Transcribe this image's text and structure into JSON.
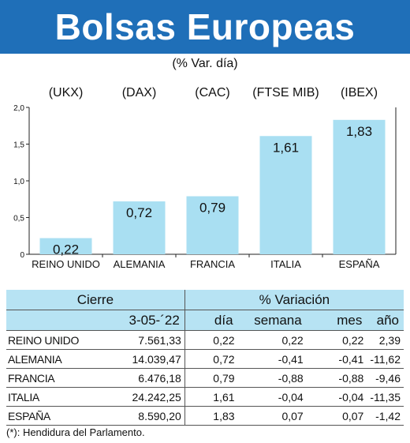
{
  "header": {
    "title": "Bolsas Europeas",
    "subtitle": "(% Var. día)"
  },
  "colors": {
    "title_bar": "#1f6fb8",
    "bar": "#a9dff2",
    "table_header": "#b7e3f3"
  },
  "chart_data": {
    "type": "bar",
    "index_labels": [
      "(UKX)",
      "(DAX)",
      "(CAC)",
      "(FTSE MIB)",
      "(IBEX)"
    ],
    "categories": [
      "REINO UNIDO",
      "ALEMANIA",
      "FRANCIA",
      "ITALIA",
      "ESPAÑA"
    ],
    "values": [
      0.22,
      0.72,
      0.79,
      1.61,
      1.83
    ],
    "value_labels": [
      "0,22",
      "0,72",
      "0,79",
      "1,61",
      "1,83"
    ],
    "yticks": [
      0,
      0.5,
      1.0,
      1.5,
      2.0
    ],
    "ytick_labels": [
      "0",
      "0,5",
      "1,0",
      "1,5",
      "2,0"
    ],
    "ylim": [
      0,
      2.0
    ],
    "grid": false
  },
  "table": {
    "header_cierre": "Cierre",
    "header_variacion": "% Variación",
    "date": "3-05-´22",
    "col_dia": "día",
    "col_semana": "semana",
    "col_mes": "mes",
    "col_ano": "año",
    "rows": [
      {
        "name": "REINO UNIDO",
        "cierre": "7.561,33",
        "dia": "0,22",
        "semana": "0,22",
        "mes": "0,22",
        "ano": "2,39"
      },
      {
        "name": "ALEMANIA",
        "cierre": "14.039,47",
        "dia": "0,72",
        "semana": "-0,41",
        "mes": "-0,41",
        "ano": "-11,62"
      },
      {
        "name": "FRANCIA",
        "cierre": "6.476,18",
        "dia": "0,79",
        "semana": "-0,88",
        "mes": "-0,88",
        "ano": "-9,46"
      },
      {
        "name": "ITALIA",
        "cierre": "24.242,25",
        "dia": "1,61",
        "semana": "-0,04",
        "mes": "-0,04",
        "ano": "-11,35"
      },
      {
        "name": "ESPAÑA",
        "cierre": "8.590,20",
        "dia": "1,83",
        "semana": "0,07",
        "mes": "0,07",
        "ano": "-1,42"
      }
    ]
  },
  "footnote": "(*): Hendidura del Parlamento."
}
